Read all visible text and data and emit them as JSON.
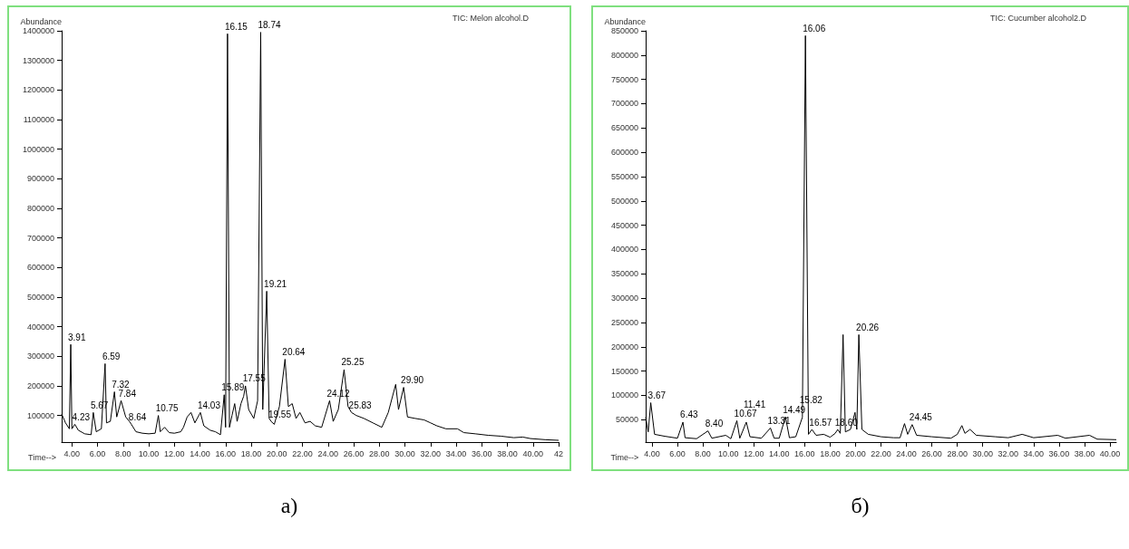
{
  "chart_data": [
    {
      "type": "line",
      "title": "TIC: Melon alcohol.D",
      "xlabel": "Time-->",
      "ylabel": "Abundance",
      "color": "#000000",
      "marker": "none",
      "grid": false,
      "x": [
        3.2,
        3.5,
        3.8,
        3.91,
        4.0,
        4.23,
        4.5,
        5.0,
        5.5,
        5.67,
        5.9,
        6.3,
        6.59,
        6.7,
        7.0,
        7.32,
        7.5,
        7.84,
        8.2,
        8.49,
        8.64,
        9.0,
        9.5,
        10.0,
        10.5,
        10.75,
        10.9,
        11.24,
        11.6,
        12.0,
        12.5,
        12.71,
        13.0,
        13.3,
        13.6,
        14.03,
        14.3,
        14.8,
        15.2,
        15.6,
        15.89,
        16.0,
        16.15,
        16.3,
        16.5,
        16.71,
        16.9,
        17.2,
        17.41,
        17.55,
        17.8,
        18.2,
        18.5,
        18.74,
        18.9,
        19.21,
        19.4,
        19.55,
        19.8,
        20.2,
        20.64,
        20.9,
        21.2,
        21.5,
        21.8,
        22.2,
        22.6,
        23.0,
        23.5,
        24.12,
        24.4,
        24.8,
        25.25,
        25.56,
        25.83,
        26.2,
        26.8,
        27.5,
        28.2,
        28.7,
        29.28,
        29.5,
        29.9,
        30.2,
        30.8,
        31.5,
        32.0,
        32.5,
        33.2,
        34.1,
        34.6,
        35.5,
        36.5,
        37.5,
        38.5,
        39.2,
        39.8,
        41.0,
        42.0
      ],
      "values": [
        105000,
        75000,
        55000,
        340000,
        55000,
        70000,
        50000,
        38000,
        35000,
        110000,
        45000,
        55000,
        275000,
        75000,
        80000,
        180000,
        95000,
        150000,
        95000,
        80000,
        70000,
        45000,
        40000,
        38000,
        40000,
        100000,
        45000,
        60000,
        42000,
        40000,
        45000,
        60000,
        95000,
        110000,
        75000,
        110000,
        65000,
        50000,
        45000,
        35000,
        170000,
        60000,
        1390000,
        60000,
        100000,
        140000,
        80000,
        140000,
        165000,
        200000,
        120000,
        90000,
        150000,
        1395000,
        120000,
        520000,
        90000,
        80000,
        70000,
        130000,
        290000,
        130000,
        140000,
        90000,
        110000,
        75000,
        80000,
        65000,
        60000,
        150000,
        80000,
        120000,
        255000,
        130000,
        110000,
        100000,
        90000,
        75000,
        60000,
        110000,
        205000,
        120000,
        195000,
        95000,
        90000,
        85000,
        75000,
        65000,
        55000,
        55000,
        42000,
        38000,
        33000,
        30000,
        25000,
        27000,
        22000,
        18000,
        16000
      ],
      "xlim": [
        3.2,
        42
      ],
      "ylim": [
        10000,
        1400000
      ],
      "xticks": [
        {
          "value": 4,
          "label": "4.00"
        },
        {
          "value": 6,
          "label": "6.00"
        },
        {
          "value": 8,
          "label": "8.00"
        },
        {
          "value": 10,
          "label": "10.00"
        },
        {
          "value": 12,
          "label": "12.00"
        },
        {
          "value": 14,
          "label": "14.00"
        },
        {
          "value": 16,
          "label": "16.00"
        },
        {
          "value": 18,
          "label": "18.00"
        },
        {
          "value": 20,
          "label": "20.00"
        },
        {
          "value": 22,
          "label": "22.00"
        },
        {
          "value": 24,
          "label": "24.00"
        },
        {
          "value": 26,
          "label": "26.00"
        },
        {
          "value": 28,
          "label": "28.00"
        },
        {
          "value": 30,
          "label": "30.00"
        },
        {
          "value": 32,
          "label": "32.00"
        },
        {
          "value": 34,
          "label": "34.00"
        },
        {
          "value": 36,
          "label": "36.00"
        },
        {
          "value": 38,
          "label": "38.00"
        },
        {
          "value": 40,
          "label": "40.00"
        },
        {
          "value": 42,
          "label": "42"
        }
      ],
      "yticks": [
        100000,
        200000,
        300000,
        400000,
        500000,
        600000,
        700000,
        800000,
        900000,
        1000000,
        1100000,
        1200000,
        1300000,
        1400000
      ],
      "annotations": [
        {
          "text": "3.91",
          "x": 3.91,
          "y": 340000
        },
        {
          "text": "4.23",
          "x": 4.23,
          "y": 70000
        },
        {
          "text": "5.67",
          "x": 5.67,
          "y": 110000
        },
        {
          "text": "6.59",
          "x": 6.59,
          "y": 275000
        },
        {
          "text": "7.32",
          "x": 7.32,
          "y": 180000
        },
        {
          "text": "7.84",
          "x": 7.84,
          "y": 150000
        },
        {
          "text": "8.64",
          "x": 8.64,
          "y": 70000
        },
        {
          "text": "10.75",
          "x": 10.75,
          "y": 100000
        },
        {
          "text": "14.03",
          "x": 14.03,
          "y": 110000
        },
        {
          "text": "15.89",
          "x": 15.89,
          "y": 170000
        },
        {
          "text": "16.15",
          "x": 16.15,
          "y": 1390000
        },
        {
          "text": "17.55",
          "x": 17.55,
          "y": 200000
        },
        {
          "text": "18.74",
          "x": 18.74,
          "y": 1395000
        },
        {
          "text": "19.21",
          "x": 19.21,
          "y": 520000
        },
        {
          "text": "19.55",
          "x": 19.55,
          "y": 80000
        },
        {
          "text": "20.64",
          "x": 20.64,
          "y": 290000
        },
        {
          "text": "24.12",
          "x": 24.12,
          "y": 150000
        },
        {
          "text": "25.25",
          "x": 25.25,
          "y": 255000
        },
        {
          "text": "25.83",
          "x": 25.83,
          "y": 110000
        },
        {
          "text": "29.90",
          "x": 29.9,
          "y": 195000
        },
        "а)"
      ]
    },
    {
      "type": "line",
      "title": "TIC: Cucumber alcohol2.D",
      "xlabel": "Time-->",
      "ylabel": "Abundance",
      "color": "#000000",
      "marker": "none",
      "grid": false,
      "x": [
        3.5,
        3.7,
        3.9,
        4.2,
        5.0,
        6.0,
        6.43,
        6.6,
        7.5,
        8.4,
        8.7,
        9.8,
        10.2,
        10.67,
        10.9,
        11.41,
        11.7,
        12.6,
        13.31,
        13.6,
        14.0,
        14.49,
        14.8,
        15.3,
        15.82,
        16.06,
        16.3,
        16.57,
        16.9,
        17.5,
        18.0,
        18.4,
        18.6,
        18.8,
        19.02,
        19.2,
        19.6,
        19.96,
        20.1,
        20.26,
        20.5,
        21.0,
        22.0,
        23.0,
        23.5,
        23.85,
        24.1,
        24.45,
        24.8,
        26.0,
        27.5,
        28.0,
        28.36,
        28.6,
        29.0,
        29.5,
        31.0,
        32.0,
        33.1,
        34.0,
        35.9,
        36.5,
        38.4,
        39.0,
        40.5
      ],
      "values": [
        55000,
        25000,
        85000,
        20000,
        16000,
        12000,
        45000,
        13000,
        11000,
        27000,
        12000,
        18000,
        11000,
        48000,
        12000,
        45000,
        15000,
        12000,
        33000,
        12000,
        12000,
        56000,
        13000,
        15000,
        55000,
        840000,
        20000,
        30000,
        18000,
        20000,
        14000,
        22000,
        30000,
        22000,
        225000,
        25000,
        30000,
        65000,
        30000,
        225000,
        30000,
        20000,
        15000,
        13000,
        13000,
        42000,
        20000,
        40000,
        18000,
        15000,
        12000,
        20000,
        38000,
        22000,
        30000,
        18000,
        15000,
        13000,
        20000,
        13000,
        18000,
        12000,
        18000,
        10000,
        9000
      ],
      "xlim": [
        3.5,
        40.5
      ],
      "ylim": [
        4000,
        850000
      ],
      "xticks": [
        {
          "value": 4,
          "label": "4.00"
        },
        {
          "value": 6,
          "label": "6.00"
        },
        {
          "value": 8,
          "label": "8.00"
        },
        {
          "value": 10,
          "label": "10.00"
        },
        {
          "value": 12,
          "label": "12.00"
        },
        {
          "value": 14,
          "label": "14.00"
        },
        {
          "value": 16,
          "label": "16.00"
        },
        {
          "value": 18,
          "label": "18.00"
        },
        {
          "value": 20,
          "label": "20.00"
        },
        {
          "value": 22,
          "label": "22.00"
        },
        {
          "value": 24,
          "label": "24.00"
        },
        {
          "value": 26,
          "label": "26.00"
        },
        {
          "value": 28,
          "label": "28.00"
        },
        {
          "value": 30,
          "label": "30.00"
        },
        {
          "value": 32,
          "label": "32.00"
        },
        {
          "value": 34,
          "label": "34.00"
        },
        {
          "value": 36,
          "label": "36.00"
        },
        {
          "value": 38,
          "label": "38.00"
        },
        {
          "value": 40,
          "label": "40.00"
        }
      ],
      "yticks": [
        50000,
        100000,
        150000,
        200000,
        250000,
        300000,
        350000,
        400000,
        450000,
        500000,
        550000,
        600000,
        650000,
        700000,
        750000,
        800000,
        850000
      ],
      "annotations": [
        {
          "text": "3.67",
          "x": 3.9,
          "y": 85000
        },
        {
          "text": "6.43",
          "x": 6.43,
          "y": 45000
        },
        {
          "text": "8.40",
          "x": 8.4,
          "y": 27000
        },
        {
          "text": "10.67",
          "x": 10.67,
          "y": 48000
        },
        {
          "text": "11.41",
          "x": 11.41,
          "y": 45000
        },
        {
          "text": "13.31",
          "x": 13.31,
          "y": 33000
        },
        {
          "text": "14.49",
          "x": 14.49,
          "y": 56000
        },
        {
          "text": "15.82",
          "x": 15.82,
          "y": 55000
        },
        {
          "text": "16.06",
          "x": 16.06,
          "y": 840000
        },
        {
          "text": "16.57",
          "x": 16.57,
          "y": 30000
        },
        {
          "text": "18.60",
          "x": 18.6,
          "y": 30000
        },
        {
          "text": "20.26",
          "x": 20.26,
          "y": 225000
        },
        {
          "text": "24.45",
          "x": 24.45,
          "y": 40000
        },
        "б)"
      ]
    }
  ]
}
